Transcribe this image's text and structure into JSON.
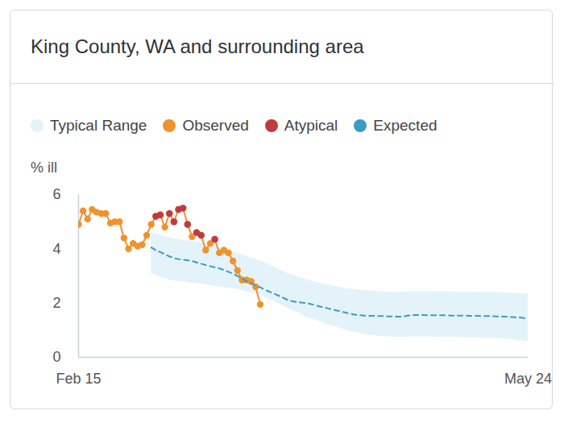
{
  "chart_data": {
    "type": "line",
    "title": "King County, WA and surrounding area",
    "y_label": "% ill",
    "categories": [
      "Feb 15",
      null,
      null,
      null,
      null,
      null,
      null,
      null,
      null,
      null,
      null,
      null,
      null,
      null,
      null,
      null,
      null,
      null,
      null,
      null,
      null,
      null,
      null,
      null,
      null,
      null,
      null,
      null,
      null,
      null,
      null,
      null,
      null,
      null,
      null,
      null,
      null,
      null,
      null,
      null,
      null,
      null,
      null,
      null,
      null,
      null,
      null,
      null,
      null,
      null,
      null,
      null,
      null,
      null,
      null,
      null,
      null,
      null,
      null,
      null,
      null,
      null,
      null,
      null,
      null,
      null,
      null,
      null,
      null,
      null,
      null,
      null,
      null,
      null,
      null,
      null,
      null,
      null,
      null,
      null,
      null,
      null,
      null,
      null,
      null,
      null,
      null,
      null,
      null,
      null,
      null,
      null,
      null,
      null,
      null,
      null,
      null,
      null,
      null,
      "May 24"
    ],
    "ylim": [
      0,
      6
    ],
    "yticks": [
      0,
      2,
      4,
      6
    ],
    "grid": false,
    "legend": "top",
    "series": [
      {
        "name": "Typical Range",
        "type": "area",
        "color": "#e4f3f9",
        "lower": [
          null,
          null,
          null,
          null,
          null,
          null,
          null,
          null,
          null,
          null,
          null,
          null,
          null,
          null,
          null,
          null,
          3.1,
          3.02,
          2.96,
          2.9,
          2.86,
          2.82,
          2.8,
          2.78,
          2.76,
          2.74,
          2.72,
          2.7,
          2.68,
          2.65,
          2.62,
          2.6,
          2.58,
          2.56,
          2.53,
          2.5,
          2.46,
          2.42,
          2.38,
          2.34,
          2.3,
          2.22,
          2.14,
          2.06,
          1.98,
          1.9,
          1.82,
          1.74,
          1.66,
          1.58,
          1.5,
          1.44,
          1.38,
          1.32,
          1.26,
          1.2,
          1.15,
          1.1,
          1.05,
          1.0,
          0.95,
          0.91,
          0.88,
          0.85,
          0.82,
          0.8,
          0.78,
          0.77,
          0.76,
          0.75,
          0.75,
          0.75,
          0.75,
          0.76,
          0.76,
          0.76,
          0.76,
          0.76,
          0.76,
          0.75,
          0.75,
          0.75,
          0.74,
          0.74,
          0.73,
          0.73,
          0.72,
          0.72,
          0.71,
          0.71,
          0.7,
          0.7,
          0.69,
          0.68,
          0.67,
          0.66,
          0.64,
          0.62,
          0.6,
          0.57
        ],
        "upper": [
          null,
          null,
          null,
          null,
          null,
          null,
          null,
          null,
          null,
          null,
          null,
          null,
          null,
          null,
          null,
          null,
          4.6,
          4.55,
          4.5,
          4.45,
          4.42,
          4.38,
          4.35,
          4.32,
          4.3,
          4.28,
          4.25,
          4.22,
          4.18,
          4.14,
          4.1,
          4.05,
          4.0,
          3.95,
          3.9,
          3.84,
          3.78,
          3.72,
          3.67,
          3.62,
          3.56,
          3.5,
          3.42,
          3.34,
          3.26,
          3.18,
          3.1,
          3.04,
          2.98,
          2.93,
          2.88,
          2.83,
          2.78,
          2.74,
          2.7,
          2.66,
          2.63,
          2.6,
          2.57,
          2.54,
          2.52,
          2.5,
          2.48,
          2.46,
          2.45,
          2.44,
          2.43,
          2.42,
          2.41,
          2.4,
          2.4,
          2.4,
          2.41,
          2.42,
          2.43,
          2.43,
          2.43,
          2.43,
          2.42,
          2.42,
          2.42,
          2.41,
          2.41,
          2.41,
          2.4,
          2.4,
          2.4,
          2.4,
          2.39,
          2.39,
          2.39,
          2.38,
          2.38,
          2.38,
          2.37,
          2.37,
          2.36,
          2.36,
          2.35,
          2.35
        ]
      },
      {
        "name": "Observed",
        "type": "line",
        "color": "#f0922e",
        "marker": "circle",
        "values": [
          4.9,
          5.4,
          5.1,
          5.45,
          5.35,
          5.3,
          5.3,
          4.95,
          5.0,
          5.0,
          4.4,
          4.0,
          4.2,
          4.1,
          4.15,
          4.5,
          4.9,
          5.2,
          5.25,
          4.8,
          5.3,
          5.0,
          5.45,
          5.5,
          4.9,
          4.45,
          4.6,
          4.5,
          3.95,
          4.2,
          4.35,
          3.85,
          3.95,
          3.85,
          3.55,
          3.2,
          2.85,
          2.85,
          2.8,
          2.6,
          1.95,
          null,
          null,
          null,
          null,
          null,
          null,
          null,
          null,
          null,
          null,
          null,
          null,
          null,
          null,
          null,
          null,
          null,
          null,
          null,
          null,
          null,
          null,
          null,
          null,
          null,
          null,
          null,
          null,
          null,
          null,
          null,
          null,
          null,
          null,
          null,
          null,
          null,
          null,
          null,
          null,
          null,
          null,
          null,
          null,
          null,
          null,
          null,
          null,
          null,
          null,
          null,
          null,
          null,
          null,
          null,
          null,
          null,
          null,
          null
        ]
      },
      {
        "name": "Atypical",
        "type": "scatter",
        "color": "#c23a3f",
        "marker": "circle",
        "values": [
          null,
          null,
          null,
          null,
          null,
          null,
          null,
          null,
          null,
          null,
          null,
          null,
          null,
          null,
          null,
          null,
          null,
          5.2,
          5.25,
          null,
          5.3,
          5.0,
          5.45,
          5.5,
          4.9,
          null,
          4.6,
          4.5,
          null,
          null,
          4.35,
          null,
          null,
          null,
          null,
          null,
          null,
          null,
          null,
          null,
          null,
          null,
          null,
          null,
          null,
          null,
          null,
          null,
          null,
          null,
          null,
          null,
          null,
          null,
          null,
          null,
          null,
          null,
          null,
          null,
          null,
          null,
          null,
          null,
          null,
          null,
          null,
          null,
          null,
          null,
          null,
          null,
          null,
          null,
          null,
          null,
          null,
          null,
          null,
          null,
          null,
          null,
          null,
          null,
          null,
          null,
          null,
          null,
          null,
          null,
          null,
          null,
          null,
          null,
          null,
          null,
          null,
          null,
          null,
          null
        ]
      },
      {
        "name": "Expected",
        "type": "line",
        "color": "#3a9cc2",
        "line_style": "dashed",
        "values": [
          null,
          null,
          null,
          null,
          null,
          null,
          null,
          null,
          null,
          null,
          null,
          null,
          null,
          null,
          null,
          null,
          4.05,
          3.95,
          3.88,
          3.8,
          3.72,
          3.66,
          3.62,
          3.6,
          3.58,
          3.55,
          3.5,
          3.45,
          3.4,
          3.36,
          3.32,
          3.28,
          3.22,
          3.15,
          3.08,
          3.0,
          2.9,
          2.8,
          2.72,
          2.65,
          2.58,
          2.5,
          2.42,
          2.35,
          2.28,
          2.2,
          2.12,
          2.07,
          2.04,
          2.02,
          2.0,
          1.97,
          1.93,
          1.88,
          1.84,
          1.8,
          1.76,
          1.72,
          1.68,
          1.64,
          1.6,
          1.57,
          1.55,
          1.54,
          1.53,
          1.53,
          1.52,
          1.52,
          1.51,
          1.51,
          1.5,
          1.5,
          1.52,
          1.55,
          1.56,
          1.56,
          1.56,
          1.55,
          1.55,
          1.55,
          1.55,
          1.55,
          1.54,
          1.54,
          1.54,
          1.54,
          1.53,
          1.53,
          1.53,
          1.52,
          1.52,
          1.52,
          1.51,
          1.5,
          1.5,
          1.49,
          1.48,
          1.47,
          1.45,
          1.43
        ]
      }
    ]
  }
}
